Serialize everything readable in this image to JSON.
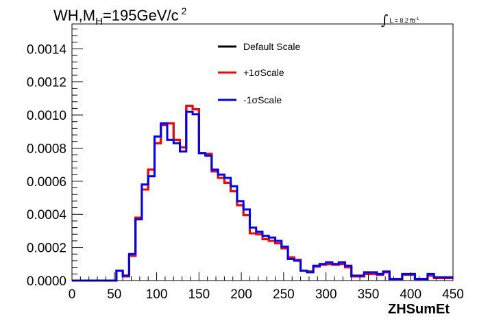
{
  "title": {
    "main": "WH,M",
    "sub": "H",
    "value": "=195GeV/c",
    "sup": "2"
  },
  "luminosity": {
    "symbol": "∫",
    "text": "L = 8.2 fb",
    "sup": "-1"
  },
  "colors": {
    "default": "#000000",
    "plus": "#ff0000",
    "minus": "#0000ff"
  },
  "chart_data": {
    "type": "line",
    "xlabel": "ZHSumEt",
    "ylabel": "",
    "xlim": [
      0,
      450
    ],
    "ylim": [
      0,
      0.00155
    ],
    "xticks": [
      0,
      50,
      100,
      150,
      200,
      250,
      300,
      350,
      400,
      450
    ],
    "xtick_labels": [
      "0",
      "50",
      "100",
      "150",
      "200",
      "250",
      "300",
      "350",
      "400",
      "450"
    ],
    "yticks": [
      0,
      0.0002,
      0.0004,
      0.0006,
      0.0008,
      0.001,
      0.0012,
      0.0014
    ],
    "ytick_labels": [
      "0.0000",
      "0.0002",
      "0.0004",
      "0.0006",
      "0.0008",
      "0.0010",
      "0.0012",
      "0.0014"
    ],
    "bin_width": 7.5,
    "bin_edges_start": 0,
    "legend": {
      "position": "top-center"
    },
    "series": [
      {
        "name": "Default Scale",
        "color": "#000000",
        "values": [
          0,
          0,
          0,
          0,
          0,
          0,
          0,
          6e-05,
          2.5e-05,
          0.00015,
          0.00038,
          0.00055,
          0.00067,
          0.00083,
          0.00094,
          0.00095,
          0.00085,
          0.000805,
          0.001055,
          0.001035,
          0.00077,
          0.000765,
          0.00066,
          0.00062,
          0.00059,
          0.00054,
          0.000455,
          0.000395,
          0.000285,
          0.00028,
          0.00025,
          0.00024,
          0.000225,
          0.000195,
          0.00014,
          0.000125,
          6e-05,
          5.5e-05,
          8.5e-05,
          9.5e-05,
          0.0001,
          9.5e-05,
          0.0001,
          8e-05,
          2.5e-05,
          2.5e-05,
          4e-05,
          4e-05,
          3.5e-05,
          5e-05,
          1e-05,
          1e-05,
          3.5e-05,
          3.5e-05,
          1e-05,
          1e-05,
          3e-05,
          1.5e-05,
          1.5e-05,
          1.5e-05
        ]
      },
      {
        "name": "+1σScale",
        "color": "#ff0000",
        "values": [
          0,
          0,
          0,
          0,
          0,
          0,
          0,
          6e-05,
          2.5e-05,
          0.00015,
          0.00038,
          0.00055,
          0.00067,
          0.00083,
          0.00094,
          0.00095,
          0.00085,
          0.000805,
          0.001055,
          0.001035,
          0.00077,
          0.000765,
          0.00066,
          0.00062,
          0.00059,
          0.00054,
          0.000455,
          0.000395,
          0.000285,
          0.00028,
          0.00025,
          0.00024,
          0.000225,
          0.000195,
          0.00014,
          0.000125,
          6e-05,
          5.5e-05,
          8.5e-05,
          9.5e-05,
          0.0001,
          9.5e-05,
          0.0001,
          8e-05,
          2.5e-05,
          2.5e-05,
          4e-05,
          4e-05,
          3.5e-05,
          5e-05,
          1e-05,
          1e-05,
          3.5e-05,
          3.5e-05,
          1e-05,
          1e-05,
          3e-05,
          1.5e-05,
          1.5e-05,
          1.5e-05
        ]
      },
      {
        "name": "-1σScale",
        "color": "#0000ff",
        "values": [
          0,
          0,
          0,
          0,
          0,
          0,
          0,
          6e-05,
          3e-05,
          0.00016,
          0.00037,
          0.00058,
          0.00063,
          0.00087,
          0.00095,
          0.00085,
          0.00083,
          0.00078,
          0.00102,
          0.001005,
          0.00077,
          0.000755,
          0.00067,
          0.00064,
          0.00062,
          0.00057,
          0.00048,
          0.00043,
          0.00032,
          0.000295,
          0.00027,
          0.00026,
          0.00024,
          0.000205,
          0.00013,
          0.00012,
          6e-05,
          5e-05,
          9e-05,
          0.0001,
          0.00011,
          0.0001,
          0.00011,
          9e-05,
          3e-05,
          3e-05,
          5e-05,
          5e-05,
          4e-05,
          5.5e-05,
          1e-05,
          1e-05,
          4e-05,
          4e-05,
          1e-05,
          1e-05,
          4e-05,
          2e-05,
          2e-05,
          2e-05
        ]
      }
    ]
  }
}
